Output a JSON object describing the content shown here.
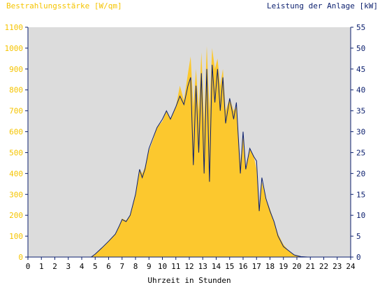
{
  "colors": {
    "left_axis": "#f5c400",
    "right_axis": "#0b1f6e",
    "plot_bg": "#dcdcdc",
    "irradiance_fill": "#fcc82e",
    "power_line": "#0b1f6e"
  },
  "chart_data": {
    "type": "area",
    "xlabel": "Uhrzeit in Stunden",
    "y_left_label": "Bestrahlungsstärke [W/qm]",
    "y_right_label": "Leistung der Anlage [kW]",
    "xlim": [
      0,
      24
    ],
    "y_left_lim": [
      0,
      1100
    ],
    "y_right_lim": [
      0,
      55
    ],
    "x_ticks": [
      "0",
      "1",
      "2",
      "3",
      "4",
      "5",
      "6",
      "7",
      "8",
      "9",
      "10",
      "11",
      "12",
      "13",
      "14",
      "15",
      "16",
      "17",
      "18",
      "19",
      "20",
      "21",
      "22",
      "23",
      "24"
    ],
    "y_left_ticks": [
      "0",
      "100",
      "200",
      "300",
      "400",
      "500",
      "600",
      "700",
      "800",
      "900",
      "1000",
      "1100"
    ],
    "y_right_ticks": [
      "0",
      "5",
      "10",
      "15",
      "20",
      "25",
      "30",
      "35",
      "40",
      "45",
      "50",
      "55"
    ],
    "grid": false,
    "series": [
      {
        "name": "Bestrahlungsstärke [W/qm]",
        "axis": "left",
        "x": [
          0,
          4.7,
          5.0,
          5.5,
          6.0,
          6.5,
          6.8,
          7.0,
          7.3,
          7.6,
          8.0,
          8.3,
          8.5,
          8.7,
          9.0,
          9.3,
          9.6,
          10.0,
          10.3,
          10.6,
          11.0,
          11.3,
          11.6,
          11.9,
          12.1,
          12.3,
          12.5,
          12.7,
          12.9,
          13.1,
          13.3,
          13.5,
          13.7,
          13.9,
          14.1,
          14.3,
          14.5,
          14.7,
          15.0,
          15.3,
          15.5,
          15.8,
          16.0,
          16.2,
          16.5,
          16.8,
          17.0,
          17.2,
          17.4,
          17.7,
          18.0,
          18.3,
          18.6,
          19.0,
          19.4,
          19.8,
          20.3,
          20.8,
          24
        ],
        "y": [
          0,
          0,
          15,
          45,
          75,
          110,
          150,
          185,
          175,
          200,
          300,
          420,
          400,
          430,
          510,
          560,
          620,
          650,
          700,
          660,
          720,
          820,
          750,
          880,
          960,
          720,
          900,
          700,
          980,
          650,
          1010,
          700,
          1000,
          900,
          950,
          820,
          900,
          700,
          760,
          700,
          720,
          450,
          580,
          420,
          520,
          480,
          420,
          230,
          360,
          280,
          230,
          170,
          110,
          60,
          30,
          10,
          3,
          0,
          0
        ]
      },
      {
        "name": "Leistung der Anlage [kW]",
        "axis": "right",
        "x": [
          0,
          4.7,
          5.0,
          5.5,
          6.0,
          6.5,
          6.8,
          7.0,
          7.3,
          7.6,
          8.0,
          8.3,
          8.5,
          8.7,
          9.0,
          9.3,
          9.6,
          10.0,
          10.3,
          10.6,
          11.0,
          11.3,
          11.6,
          11.9,
          12.1,
          12.3,
          12.5,
          12.7,
          12.9,
          13.1,
          13.3,
          13.5,
          13.7,
          13.9,
          14.1,
          14.3,
          14.5,
          14.7,
          15.0,
          15.3,
          15.5,
          15.8,
          16.0,
          16.2,
          16.5,
          16.8,
          17.0,
          17.2,
          17.4,
          17.7,
          18.0,
          18.3,
          18.6,
          19.0,
          19.4,
          19.8,
          20.3,
          20.8,
          24
        ],
        "y": [
          0,
          0,
          0.7,
          2.2,
          3.8,
          5.5,
          7.5,
          9.0,
          8.5,
          10.0,
          15.0,
          21.0,
          19.0,
          21.0,
          26.0,
          28.5,
          31.0,
          33.0,
          35.0,
          33.0,
          36.0,
          38.5,
          36.5,
          41.0,
          43.0,
          22.0,
          41.0,
          25.0,
          44.0,
          20.0,
          45.0,
          18.0,
          46.0,
          37.0,
          45.0,
          35.0,
          43.0,
          32.0,
          38.0,
          33.0,
          37.0,
          20.0,
          30.0,
          21.0,
          26.0,
          24.0,
          23.0,
          11.0,
          19.0,
          14.0,
          11.0,
          8.5,
          5.0,
          2.5,
          1.5,
          0.5,
          0.1,
          0,
          0
        ]
      }
    ]
  }
}
